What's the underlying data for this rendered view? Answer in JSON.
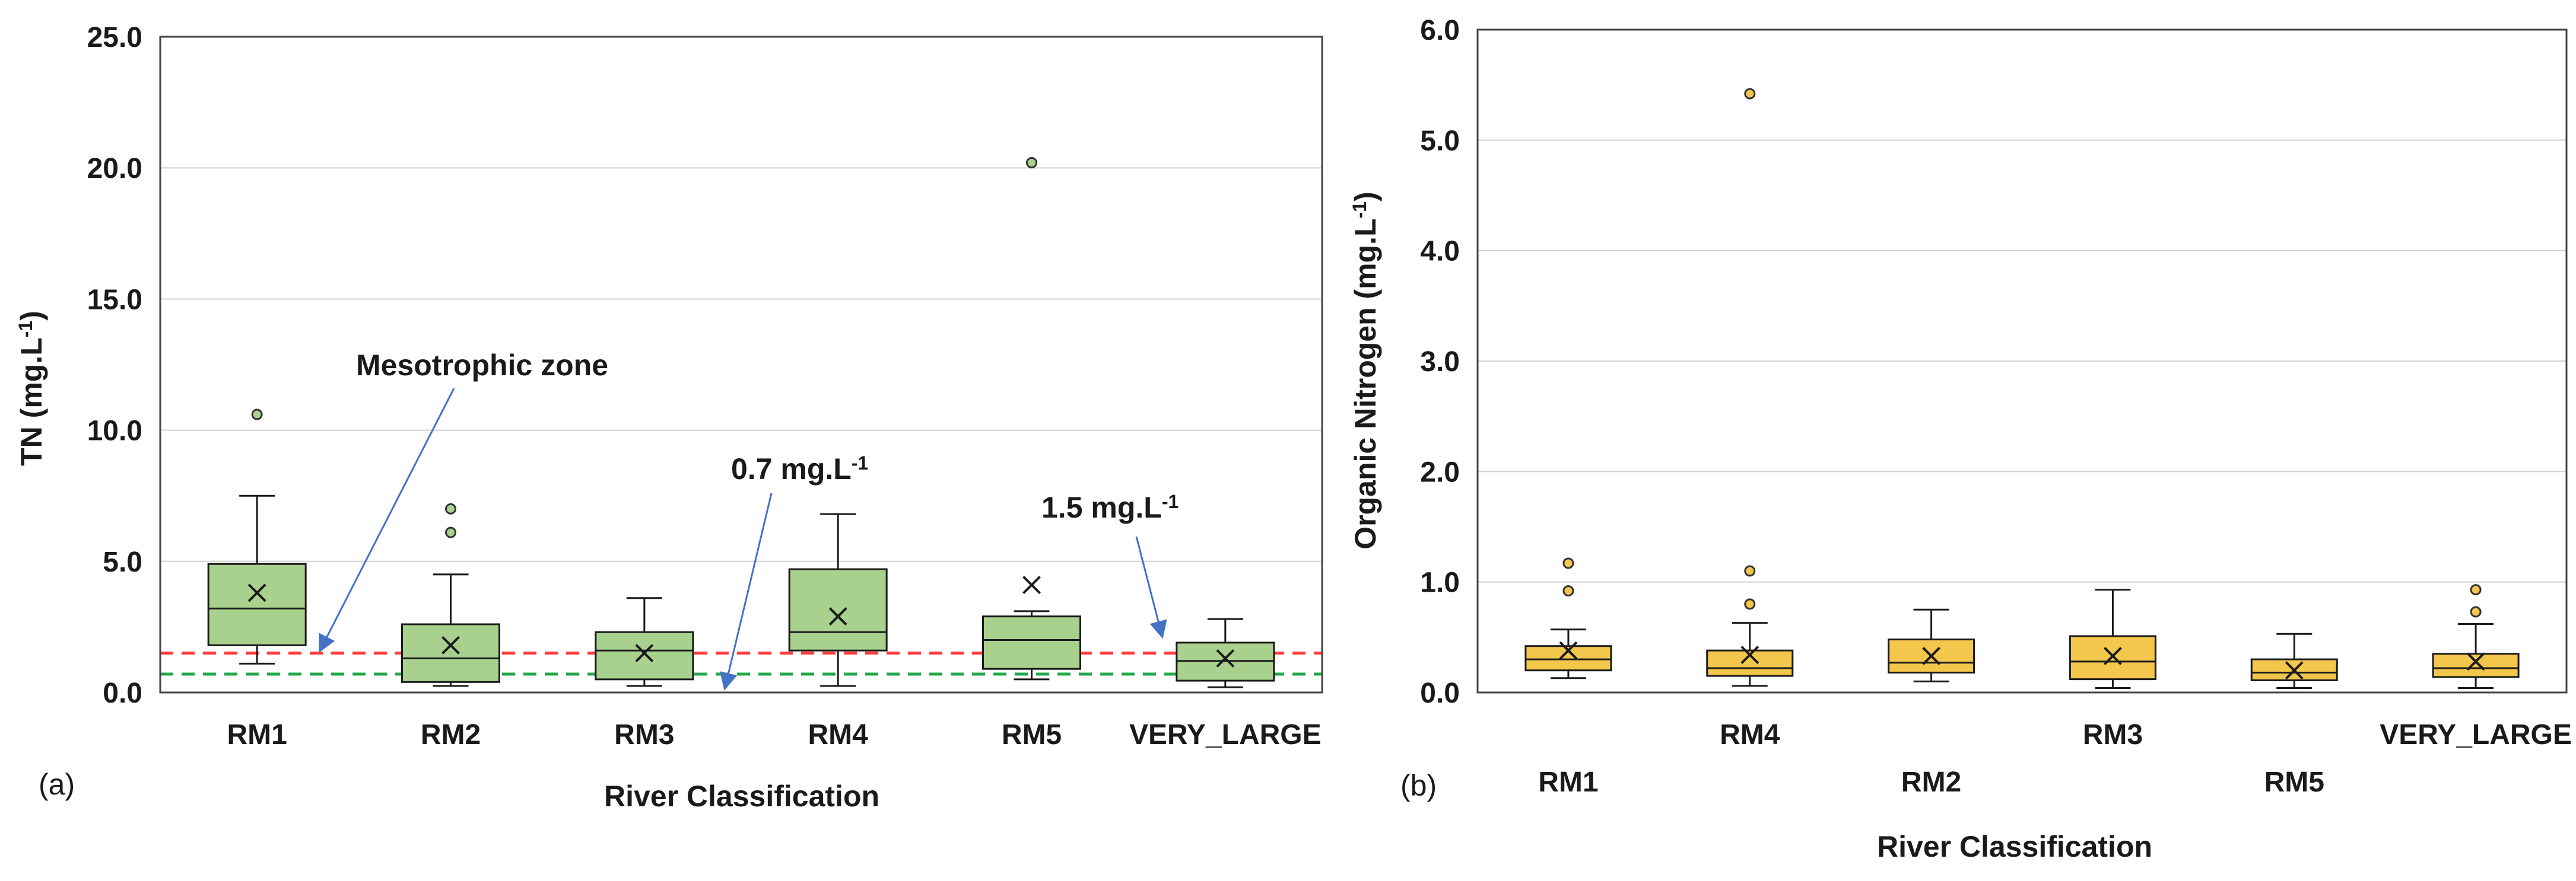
{
  "chart_data": [
    {
      "panel": "(a)",
      "type": "box",
      "ylabel": "TN (mg.L-1)",
      "ylabel_main": "TN (mg.L",
      "ylabel_sup": "-1",
      "ylabel_end": ")",
      "xlabel": "River Classification",
      "ylim": [
        0,
        25
      ],
      "yticks": [
        "0.0",
        "5.0",
        "10.0",
        "15.0",
        "20.0",
        "25.0"
      ],
      "grid": true,
      "colors": {
        "box_fill": "#a9d18e",
        "box_edge": "#1a1a1a",
        "outlier_fill": "#a9d18e"
      },
      "categories": [
        "RM1",
        "RM2",
        "RM3",
        "RM4",
        "RM5",
        "VERY_LARGE"
      ],
      "boxes": [
        {
          "label": "RM1",
          "min": 1.1,
          "q1": 1.8,
          "median": 3.2,
          "q3": 4.9,
          "max": 7.5,
          "mean": 3.8,
          "outliers": [
            10.6
          ]
        },
        {
          "label": "RM2",
          "min": 0.25,
          "q1": 0.4,
          "median": 1.3,
          "q3": 2.6,
          "max": 4.5,
          "mean": 1.8,
          "outliers": [
            6.1,
            7.0
          ]
        },
        {
          "label": "RM3",
          "min": 0.25,
          "q1": 0.5,
          "median": 1.6,
          "q3": 2.3,
          "max": 3.6,
          "mean": 1.5,
          "outliers": []
        },
        {
          "label": "RM4",
          "min": 0.25,
          "q1": 1.6,
          "median": 2.3,
          "q3": 4.7,
          "max": 6.8,
          "mean": 2.9,
          "outliers": []
        },
        {
          "label": "RM5",
          "min": 0.5,
          "q1": 0.9,
          "median": 2.0,
          "q3": 2.9,
          "max": 3.1,
          "mean": 4.1,
          "outliers": [
            20.2
          ]
        },
        {
          "label": "VERY_LARGE",
          "min": 0.2,
          "q1": 0.45,
          "median": 1.2,
          "q3": 1.9,
          "max": 2.8,
          "mean": 1.3,
          "outliers": []
        }
      ],
      "reference_lines": [
        {
          "value": 1.5,
          "color": "#ff3b3b",
          "style": "dashed"
        },
        {
          "value": 0.7,
          "color": "#22a84a",
          "style": "dashed"
        }
      ],
      "annotations": [
        {
          "text": "Mesotrophic zone",
          "points_to": "RM1",
          "points_to_value": 1.5
        },
        {
          "text": "0.7 mg.L-1",
          "text_main": "0.7 mg.L",
          "text_sup": "-1",
          "points_to": "RM3-RM4",
          "points_to_value": 0.7
        },
        {
          "text": "1.5 mg.L-1",
          "text_main": "1.5 mg.L",
          "text_sup": "-1",
          "points_to": "VERY_LARGE",
          "points_to_value": 1.5
        }
      ]
    },
    {
      "panel": "(b)",
      "type": "box",
      "ylabel": "Organic Nitrogen (mg.L-1)",
      "ylabel_main": "Organic Nitrogen (mg.L",
      "ylabel_sup": "-1",
      "ylabel_end": ")",
      "xlabel": "River Classification",
      "ylim": [
        0,
        6
      ],
      "yticks": [
        "0.0",
        "1.0",
        "2.0",
        "3.0",
        "4.0",
        "5.0",
        "6.0"
      ],
      "grid": true,
      "colors": {
        "box_fill": "#f3c64c",
        "box_edge": "#1a1a1a",
        "outlier_fill": "#f3c64c"
      },
      "categories": [
        "RM1",
        "RM4",
        "RM2",
        "RM3",
        "RM5",
        "VERY_LARGE"
      ],
      "category_label_rows": [
        2,
        1,
        2,
        1,
        2,
        1
      ],
      "boxes": [
        {
          "label": "RM1",
          "min": 0.13,
          "q1": 0.2,
          "median": 0.3,
          "q3": 0.42,
          "max": 0.57,
          "mean": 0.38,
          "outliers": [
            0.92,
            1.17
          ]
        },
        {
          "label": "RM4",
          "min": 0.06,
          "q1": 0.15,
          "median": 0.22,
          "q3": 0.38,
          "max": 0.63,
          "mean": 0.34,
          "outliers": [
            0.8,
            1.1,
            5.42
          ]
        },
        {
          "label": "RM2",
          "min": 0.1,
          "q1": 0.18,
          "median": 0.27,
          "q3": 0.48,
          "max": 0.75,
          "mean": 0.33,
          "outliers": []
        },
        {
          "label": "RM3",
          "min": 0.04,
          "q1": 0.12,
          "median": 0.28,
          "q3": 0.51,
          "max": 0.93,
          "mean": 0.33,
          "outliers": []
        },
        {
          "label": "RM5",
          "min": 0.04,
          "q1": 0.11,
          "median": 0.18,
          "q3": 0.3,
          "max": 0.53,
          "mean": 0.2,
          "outliers": []
        },
        {
          "label": "VERY_LARGE",
          "min": 0.04,
          "q1": 0.14,
          "median": 0.22,
          "q3": 0.35,
          "max": 0.62,
          "mean": 0.28,
          "outliers": [
            0.73,
            0.93
          ]
        }
      ]
    }
  ]
}
